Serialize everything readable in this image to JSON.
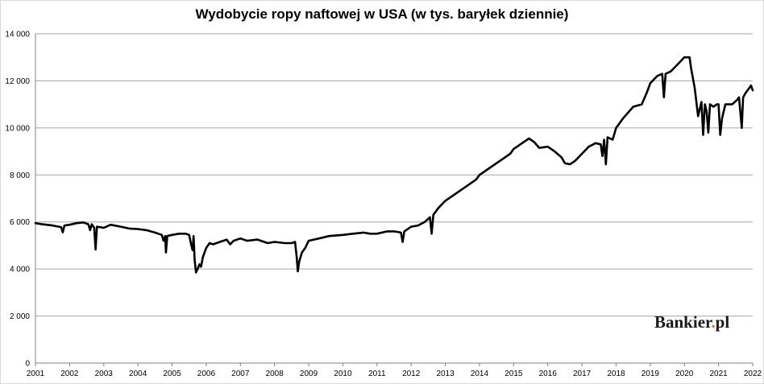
{
  "chart_data": {
    "type": "line",
    "title": "Wydobycie ropy naftowej w USA (w tys. baryłek dziennie)",
    "xlabel": "",
    "ylabel": "",
    "xlim": [
      2001,
      2022
    ],
    "ylim": [
      0,
      14000
    ],
    "x_ticks": [
      "2001",
      "2002",
      "2003",
      "2004",
      "2005",
      "2006",
      "2007",
      "2008",
      "2009",
      "2010",
      "2011",
      "2012",
      "2013",
      "2014",
      "2015",
      "2016",
      "2017",
      "2018",
      "2019",
      "2020",
      "2021",
      "2022"
    ],
    "y_ticks": [
      {
        "value": 0,
        "label": "0"
      },
      {
        "value": 2000,
        "label": "2 000"
      },
      {
        "value": 4000,
        "label": "4 000"
      },
      {
        "value": 6000,
        "label": "6 000"
      },
      {
        "value": 8000,
        "label": "8 000"
      },
      {
        "value": 10000,
        "label": "10 000"
      },
      {
        "value": 12000,
        "label": "12 000"
      },
      {
        "value": 14000,
        "label": "14 000"
      }
    ],
    "grid": true,
    "line_color": "#000000",
    "series": [
      {
        "name": "",
        "points": [
          [
            2001.0,
            5950
          ],
          [
            2001.2,
            5900
          ],
          [
            2001.5,
            5850
          ],
          [
            2001.75,
            5780
          ],
          [
            2001.8,
            5560
          ],
          [
            2001.85,
            5850
          ],
          [
            2002.0,
            5880
          ],
          [
            2002.2,
            5950
          ],
          [
            2002.4,
            5980
          ],
          [
            2002.55,
            5900
          ],
          [
            2002.6,
            5650
          ],
          [
            2002.65,
            5900
          ],
          [
            2002.72,
            5750
          ],
          [
            2002.76,
            4830
          ],
          [
            2002.8,
            5800
          ],
          [
            2003.0,
            5750
          ],
          [
            2003.2,
            5880
          ],
          [
            2003.5,
            5800
          ],
          [
            2003.75,
            5720
          ],
          [
            2004.0,
            5700
          ],
          [
            2004.25,
            5650
          ],
          [
            2004.5,
            5550
          ],
          [
            2004.7,
            5450
          ],
          [
            2004.75,
            5200
          ],
          [
            2004.8,
            5400
          ],
          [
            2004.82,
            4700
          ],
          [
            2004.86,
            5400
          ],
          [
            2005.0,
            5450
          ],
          [
            2005.2,
            5500
          ],
          [
            2005.4,
            5500
          ],
          [
            2005.5,
            5450
          ],
          [
            2005.55,
            5100
          ],
          [
            2005.6,
            4800
          ],
          [
            2005.63,
            5400
          ],
          [
            2005.66,
            4400
          ],
          [
            2005.7,
            3850
          ],
          [
            2005.75,
            4000
          ],
          [
            2005.8,
            4200
          ],
          [
            2005.85,
            4100
          ],
          [
            2005.9,
            4500
          ],
          [
            2006.0,
            4900
          ],
          [
            2006.1,
            5100
          ],
          [
            2006.2,
            5050
          ],
          [
            2006.4,
            5150
          ],
          [
            2006.6,
            5250
          ],
          [
            2006.7,
            5050
          ],
          [
            2006.8,
            5200
          ],
          [
            2007.0,
            5300
          ],
          [
            2007.2,
            5200
          ],
          [
            2007.5,
            5250
          ],
          [
            2007.8,
            5100
          ],
          [
            2008.0,
            5150
          ],
          [
            2008.3,
            5100
          ],
          [
            2008.5,
            5100
          ],
          [
            2008.6,
            5150
          ],
          [
            2008.65,
            4500
          ],
          [
            2008.68,
            3900
          ],
          [
            2008.72,
            4300
          ],
          [
            2008.8,
            4700
          ],
          [
            2008.9,
            4900
          ],
          [
            2009.0,
            5200
          ],
          [
            2009.3,
            5300
          ],
          [
            2009.6,
            5400
          ],
          [
            2010.0,
            5450
          ],
          [
            2010.3,
            5500
          ],
          [
            2010.6,
            5550
          ],
          [
            2010.8,
            5500
          ],
          [
            2011.0,
            5500
          ],
          [
            2011.3,
            5600
          ],
          [
            2011.5,
            5600
          ],
          [
            2011.7,
            5550
          ],
          [
            2011.75,
            5150
          ],
          [
            2011.8,
            5600
          ],
          [
            2012.0,
            5800
          ],
          [
            2012.2,
            5850
          ],
          [
            2012.4,
            6000
          ],
          [
            2012.55,
            6200
          ],
          [
            2012.6,
            5500
          ],
          [
            2012.65,
            6300
          ],
          [
            2012.8,
            6600
          ],
          [
            2013.0,
            6900
          ],
          [
            2013.3,
            7200
          ],
          [
            2013.6,
            7500
          ],
          [
            2013.9,
            7800
          ],
          [
            2014.0,
            8000
          ],
          [
            2014.3,
            8300
          ],
          [
            2014.6,
            8600
          ],
          [
            2014.9,
            8900
          ],
          [
            2015.0,
            9100
          ],
          [
            2015.25,
            9350
          ],
          [
            2015.45,
            9550
          ],
          [
            2015.6,
            9400
          ],
          [
            2015.75,
            9150
          ],
          [
            2016.0,
            9200
          ],
          [
            2016.2,
            9000
          ],
          [
            2016.4,
            8750
          ],
          [
            2016.5,
            8500
          ],
          [
            2016.65,
            8450
          ],
          [
            2016.8,
            8600
          ],
          [
            2017.0,
            8900
          ],
          [
            2017.2,
            9200
          ],
          [
            2017.4,
            9350
          ],
          [
            2017.55,
            9300
          ],
          [
            2017.6,
            8800
          ],
          [
            2017.65,
            9500
          ],
          [
            2017.7,
            8450
          ],
          [
            2017.75,
            9600
          ],
          [
            2017.9,
            9500
          ],
          [
            2018.0,
            10000
          ],
          [
            2018.2,
            10400
          ],
          [
            2018.5,
            10900
          ],
          [
            2018.75,
            11000
          ],
          [
            2018.9,
            11500
          ],
          [
            2019.0,
            11900
          ],
          [
            2019.2,
            12200
          ],
          [
            2019.35,
            12300
          ],
          [
            2019.4,
            11300
          ],
          [
            2019.45,
            12300
          ],
          [
            2019.6,
            12400
          ],
          [
            2019.8,
            12700
          ],
          [
            2020.0,
            13000
          ],
          [
            2020.15,
            13000
          ],
          [
            2020.2,
            12500
          ],
          [
            2020.3,
            11700
          ],
          [
            2020.4,
            10500
          ],
          [
            2020.5,
            11100
          ],
          [
            2020.55,
            9700
          ],
          [
            2020.6,
            11000
          ],
          [
            2020.65,
            10700
          ],
          [
            2020.7,
            9800
          ],
          [
            2020.75,
            11000
          ],
          [
            2020.85,
            10900
          ],
          [
            2020.95,
            11000
          ],
          [
            2021.0,
            11000
          ],
          [
            2021.05,
            9700
          ],
          [
            2021.1,
            10400
          ],
          [
            2021.2,
            11000
          ],
          [
            2021.4,
            11000
          ],
          [
            2021.55,
            11200
          ],
          [
            2021.6,
            11300
          ],
          [
            2021.68,
            10000
          ],
          [
            2021.72,
            11300
          ],
          [
            2021.8,
            11500
          ],
          [
            2021.9,
            11700
          ],
          [
            2021.95,
            11800
          ],
          [
            2022.0,
            11600
          ]
        ]
      }
    ]
  },
  "watermark": {
    "brand_main": "Bankier",
    "brand_dot": ".",
    "brand_tld": "pl",
    "brand_dot_color": "#e8731c"
  }
}
